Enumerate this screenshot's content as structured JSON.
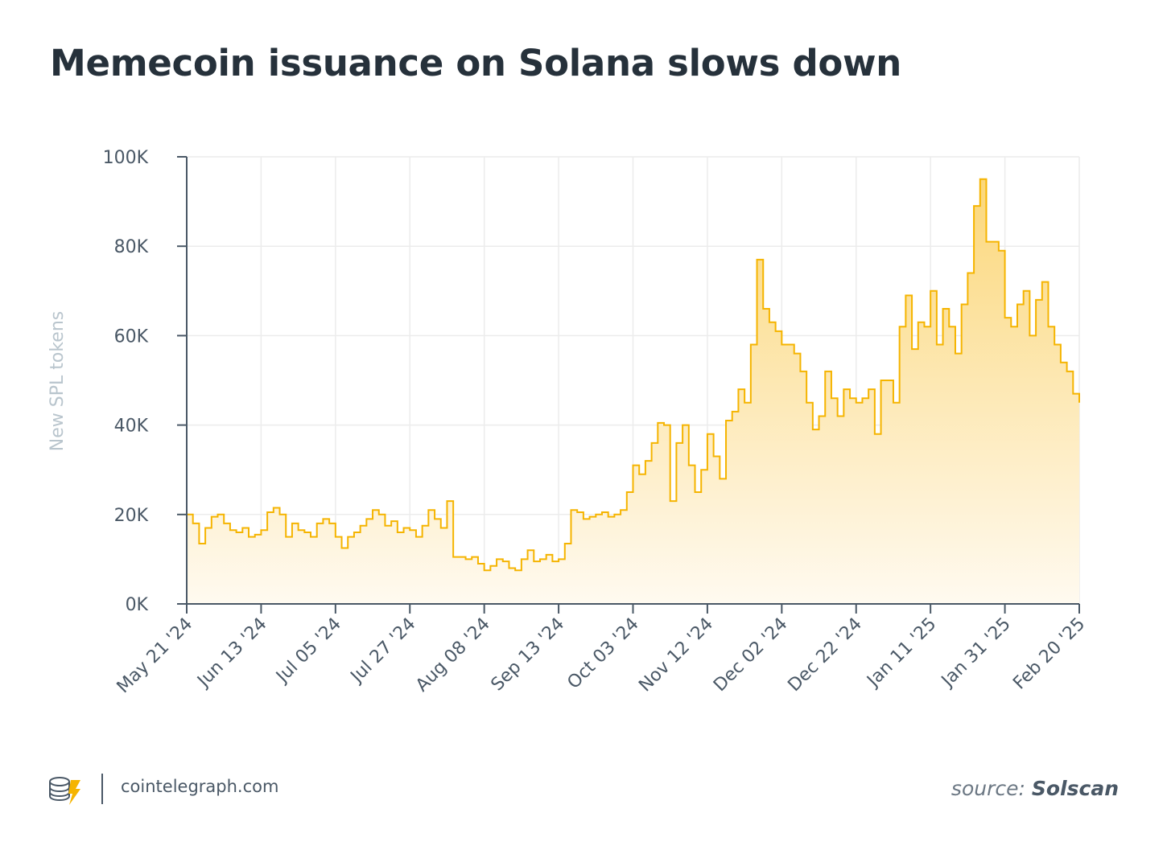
{
  "title": "Memecoin issuance on Solana slows down",
  "footer": {
    "site": "cointelegraph.com",
    "source_prefix": "source:",
    "source_name": "Solscan",
    "logo_icon": "cointelegraph-coins-logo-icon"
  },
  "colors": {
    "line": "#f5b400",
    "fill_top": "#fbd77a",
    "fill_bottom": "#fffaf0",
    "text": "#26313b",
    "axis": "#4a5866"
  },
  "chart_data": {
    "type": "area",
    "step": true,
    "title": "Memecoin issuance on Solana slows down",
    "xlabel": "",
    "ylabel": "New SPL tokens",
    "ylim": [
      0,
      100000
    ],
    "y_ticks": [
      "0K",
      "20K",
      "40K",
      "60K",
      "80K",
      "100K"
    ],
    "y_tick_values": [
      0,
      20000,
      40000,
      60000,
      80000,
      100000
    ],
    "x_tick_labels": [
      "May 21 '24",
      "Jun 13 '24",
      "Jul 05 '24",
      "Jul 27 '24",
      "Aug 08 '24",
      "Sep 13 '24",
      "Oct 03 '24",
      "Nov 12 '24",
      "Dec 02 '24",
      "Dec 22 '24",
      "Jan 11 '25",
      "Jan 31 '25",
      "Feb 20 '25"
    ],
    "grid": true,
    "values": [
      20,
      18,
      13.5,
      17,
      19.5,
      20,
      18,
      16.5,
      16,
      17,
      15,
      15.5,
      16.5,
      20.5,
      21.5,
      20,
      15,
      18,
      16.5,
      16,
      15,
      18,
      19,
      18,
      15,
      12.5,
      15,
      16,
      17.5,
      19,
      21,
      20,
      17.5,
      18.5,
      16,
      17,
      16.5,
      15,
      17.5,
      21,
      19,
      17,
      23,
      10.5,
      10.5,
      10,
      10.5,
      9,
      7.5,
      8.5,
      10,
      9.5,
      8,
      7.5,
      10,
      12,
      9.5,
      10,
      11,
      9.5,
      10,
      13.5,
      21,
      20.5,
      19,
      19.5,
      20,
      20.5,
      19.5,
      20,
      21,
      25,
      31,
      29,
      32,
      36,
      40.5,
      40,
      23,
      36,
      40,
      31,
      25,
      30,
      38,
      33,
      28,
      41,
      43,
      48,
      45,
      58,
      77,
      66,
      63,
      61,
      58,
      58,
      56,
      52,
      45,
      39,
      42,
      52,
      46,
      42,
      48,
      46,
      45,
      46,
      48,
      38,
      50,
      50,
      45,
      62,
      69,
      57,
      63,
      62,
      70,
      58,
      66,
      62,
      56,
      67,
      74,
      89,
      95,
      81,
      81,
      79,
      64,
      62,
      67,
      70,
      60,
      68,
      72,
      62,
      58,
      54,
      52,
      47,
      45
    ],
    "value_unit": "K"
  }
}
